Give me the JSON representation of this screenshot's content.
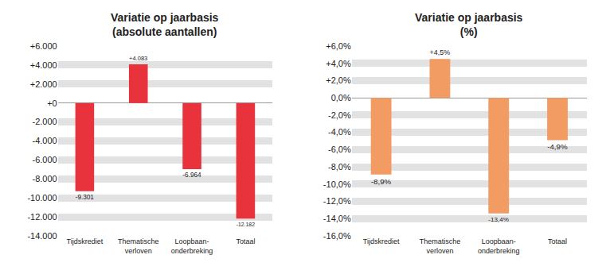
{
  "chart_data": [
    {
      "type": "bar",
      "title": "Variatie op jaarbasis",
      "subtitle": "(absolute aantallen)",
      "categories": [
        "Tijdskrediet",
        "Thematische\nverloven",
        "Loopbaan-\nonderbreking",
        "Totaal"
      ],
      "values": [
        -9301,
        4083,
        -6964,
        -12182
      ],
      "value_labels": [
        "-9.301",
        "+4.083",
        "-6.964",
        "-12.182"
      ],
      "color": "#e8323c",
      "ylim": [
        -14000,
        6000
      ],
      "yticks": [
        {
          "value": 6000,
          "label": "+6.000"
        },
        {
          "value": 4000,
          "label": "+4.000"
        },
        {
          "value": 2000,
          "label": "+2.000"
        },
        {
          "value": 0,
          "label": "+0"
        },
        {
          "value": -2000,
          "label": "-2.000"
        },
        {
          "value": -4000,
          "label": "-4.000"
        },
        {
          "value": -6000,
          "label": "-6.000"
        },
        {
          "value": -8000,
          "label": "-8.000"
        },
        {
          "value": -10000,
          "label": "-10.000"
        },
        {
          "value": -12000,
          "label": "-12.000"
        },
        {
          "value": -14000,
          "label": "-14.000"
        }
      ],
      "grid": true,
      "data_labels": true
    },
    {
      "type": "bar",
      "title": "Variatie op jaarbasis",
      "subtitle": "(%)",
      "categories": [
        "Tijdskrediet",
        "Thematische\nverloven",
        "Loopbaan-\nonderbreking",
        "Totaal"
      ],
      "values": [
        -8.9,
        4.5,
        -13.4,
        -4.9
      ],
      "value_labels": [
        "-8,9%",
        "+4,5%",
        "-13,4%",
        "-4,9%"
      ],
      "color": "#f29b62",
      "ylim": [
        -16,
        6
      ],
      "yticks": [
        {
          "value": 6,
          "label": "+6,0%"
        },
        {
          "value": 4,
          "label": "+4,0%"
        },
        {
          "value": 2,
          "label": "+2,0%"
        },
        {
          "value": 0,
          "label": "0,0%"
        },
        {
          "value": -2,
          "label": "-2,0%"
        },
        {
          "value": -4,
          "label": "-4,0%"
        },
        {
          "value": -6,
          "label": "-6,0%"
        },
        {
          "value": -8,
          "label": "-8,0%"
        },
        {
          "value": -10,
          "label": "-10,0%"
        },
        {
          "value": -12,
          "label": "-12,0%"
        },
        {
          "value": -14,
          "label": "-14,0%"
        },
        {
          "value": -16,
          "label": "-16,0%"
        }
      ],
      "grid": true,
      "data_labels": true
    }
  ]
}
